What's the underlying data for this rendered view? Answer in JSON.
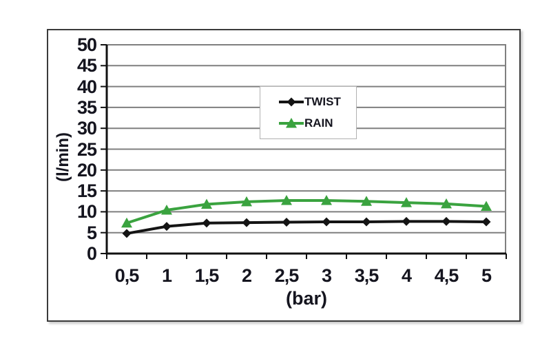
{
  "page": {
    "background": "#ffffff"
  },
  "chart_data": {
    "type": "line",
    "title": "",
    "xlabel": "(bar)",
    "ylabel": "(l/min)",
    "categories": [
      "0,5",
      "1",
      "1,5",
      "2",
      "2,5",
      "3",
      "3,5",
      "4",
      "4,5",
      "5"
    ],
    "x_values": [
      0.5,
      1,
      1.5,
      2,
      2.5,
      3,
      3.5,
      4,
      4.5,
      5
    ],
    "yticks": [
      "0",
      "5",
      "10",
      "15",
      "20",
      "25",
      "30",
      "35",
      "40",
      "45",
      "50"
    ],
    "ylim": [
      0,
      50
    ],
    "ytick_step": 5,
    "grid": true,
    "legend_position": "upper-center-inside",
    "series": [
      {
        "name": "TWIST",
        "color": "#141414",
        "marker": "diamond",
        "values": [
          4.8,
          6.5,
          7.3,
          7.4,
          7.5,
          7.6,
          7.6,
          7.7,
          7.7,
          7.6
        ]
      },
      {
        "name": "RAIN",
        "color": "#3aa33f",
        "marker": "triangle",
        "values": [
          7.3,
          10.4,
          11.8,
          12.4,
          12.7,
          12.7,
          12.5,
          12.2,
          11.9,
          11.3
        ]
      }
    ]
  },
  "colors": {
    "grid": "#7f7f7f",
    "axis": "#111111",
    "text": "#15151f",
    "frame_border": "#3a3a3a",
    "legend_border": "#b0b0b0",
    "legend_background": "#ffffff"
  }
}
